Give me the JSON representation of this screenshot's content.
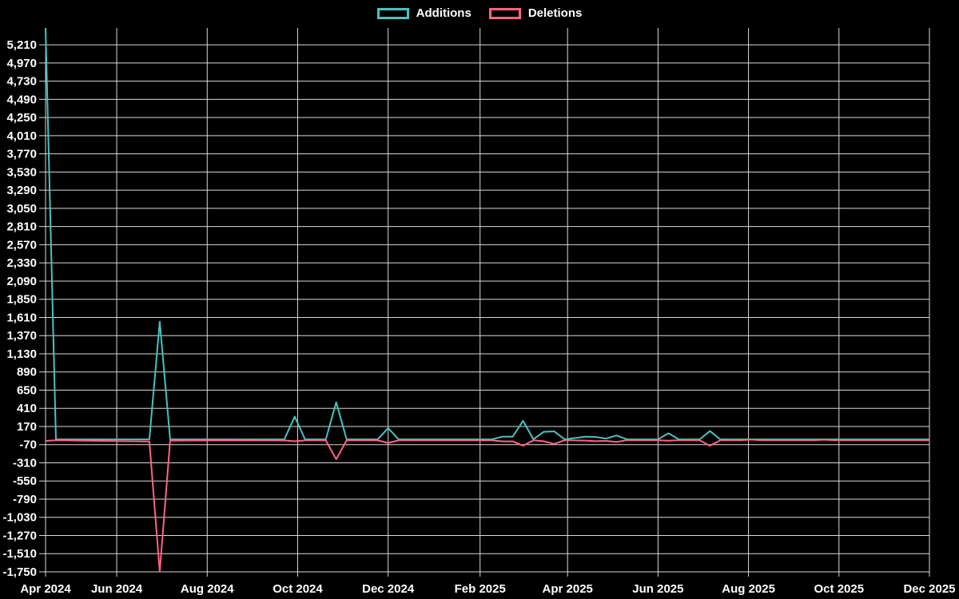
{
  "legend": {
    "items": [
      {
        "label": "Additions",
        "color": "#4bc0c0"
      },
      {
        "label": "Deletions",
        "color": "#ff6384"
      }
    ]
  },
  "chart_data": {
    "type": "line",
    "title": "",
    "xlabel": "",
    "ylabel": "",
    "grid": true,
    "legend_position": "top-center",
    "colors": {
      "background": "#000000",
      "grid": "#d9d9d9",
      "text": "#ffffff",
      "additions": "#4bc0c0",
      "deletions": "#ff6384"
    },
    "y_axis": {
      "min": -1750,
      "max": 5433,
      "tick_max": 5210,
      "tick_step": 240,
      "tick_labels": [
        "5,210",
        "4,970",
        "4,730",
        "4,490",
        "4,250",
        "4,010",
        "3,770",
        "3,530",
        "3,290",
        "3,050",
        "2,810",
        "2,570",
        "2,330",
        "2,090",
        "1,850",
        "1,610",
        "1,370",
        "1,130",
        "890",
        "650",
        "410",
        "170",
        "-70",
        "-310",
        "-550",
        "-790",
        "-1,030",
        "-1,270",
        "-1,510",
        "-1,750"
      ]
    },
    "x_axis": {
      "ticks": [
        {
          "label": "Apr 2024",
          "date": "2024-04-14"
        },
        {
          "label": "Jun 2024",
          "date": "2024-06-01"
        },
        {
          "label": "Aug 2024",
          "date": "2024-08-01"
        },
        {
          "label": "Oct 2024",
          "date": "2024-10-01"
        },
        {
          "label": "Dec 2024",
          "date": "2024-12-01"
        },
        {
          "label": "Feb 2025",
          "date": "2025-02-01"
        },
        {
          "label": "Apr 2025",
          "date": "2025-04-01"
        },
        {
          "label": "Jun 2025",
          "date": "2025-06-01"
        },
        {
          "label": "Aug 2025",
          "date": "2025-08-01"
        },
        {
          "label": "Oct 2025",
          "date": "2025-10-01"
        },
        {
          "label": "Dec 2025",
          "date": "2025-12-01"
        }
      ]
    },
    "series": [
      {
        "name": "Additions",
        "color": "#4bc0c0",
        "points": [
          [
            "2024-04-14",
            5433
          ],
          [
            "2024-04-21",
            0
          ],
          [
            "2024-06-23",
            0
          ],
          [
            "2024-06-30",
            1554
          ],
          [
            "2024-07-07",
            0
          ],
          [
            "2024-09-22",
            0
          ],
          [
            "2024-09-29",
            300
          ],
          [
            "2024-10-06",
            0
          ],
          [
            "2024-10-20",
            0
          ],
          [
            "2024-10-27",
            490
          ],
          [
            "2024-11-03",
            0
          ],
          [
            "2024-11-24",
            0
          ],
          [
            "2024-12-01",
            150
          ],
          [
            "2024-12-08",
            0
          ],
          [
            "2025-02-09",
            0
          ],
          [
            "2025-02-16",
            35
          ],
          [
            "2025-02-23",
            35
          ],
          [
            "2025-03-02",
            245
          ],
          [
            "2025-03-09",
            0
          ],
          [
            "2025-03-16",
            100
          ],
          [
            "2025-03-23",
            105
          ],
          [
            "2025-03-30",
            0
          ],
          [
            "2025-04-13",
            35
          ],
          [
            "2025-04-20",
            32
          ],
          [
            "2025-04-27",
            10
          ],
          [
            "2025-05-04",
            50
          ],
          [
            "2025-05-11",
            0
          ],
          [
            "2025-06-01",
            0
          ],
          [
            "2025-06-08",
            80
          ],
          [
            "2025-06-15",
            0
          ],
          [
            "2025-06-29",
            0
          ],
          [
            "2025-07-06",
            110
          ],
          [
            "2025-07-13",
            0
          ],
          [
            "2025-07-27",
            0
          ],
          [
            "2025-08-03",
            0
          ],
          [
            "2025-08-10",
            0
          ],
          [
            "2025-09-14",
            0
          ],
          [
            "2025-09-21",
            0
          ],
          [
            "2025-09-28",
            0
          ],
          [
            "2025-12-01",
            0
          ]
        ]
      },
      {
        "name": "Deletions",
        "color": "#ff6384",
        "points": [
          [
            "2024-04-14",
            -20
          ],
          [
            "2024-04-21",
            -13
          ],
          [
            "2024-06-23",
            -28
          ],
          [
            "2024-06-30",
            -1748
          ],
          [
            "2024-07-07",
            -16
          ],
          [
            "2024-09-22",
            -14
          ],
          [
            "2024-09-29",
            -25
          ],
          [
            "2024-10-06",
            -14
          ],
          [
            "2024-10-20",
            -14
          ],
          [
            "2024-10-27",
            -263
          ],
          [
            "2024-11-03",
            -14
          ],
          [
            "2024-11-24",
            -14
          ],
          [
            "2024-12-01",
            -48
          ],
          [
            "2024-12-08",
            -14
          ],
          [
            "2025-02-09",
            -14
          ],
          [
            "2025-02-16",
            -26
          ],
          [
            "2025-02-23",
            -26
          ],
          [
            "2025-03-02",
            -85
          ],
          [
            "2025-03-09",
            -13
          ],
          [
            "2025-03-16",
            -25
          ],
          [
            "2025-03-23",
            -60
          ],
          [
            "2025-03-30",
            -12
          ],
          [
            "2025-04-13",
            -16
          ],
          [
            "2025-04-20",
            -24
          ],
          [
            "2025-04-27",
            -20
          ],
          [
            "2025-05-04",
            -35
          ],
          [
            "2025-05-11",
            -12
          ],
          [
            "2025-06-01",
            -12
          ],
          [
            "2025-06-08",
            -18
          ],
          [
            "2025-06-15",
            -12
          ],
          [
            "2025-06-29",
            -12
          ],
          [
            "2025-07-06",
            -85
          ],
          [
            "2025-07-13",
            -12
          ],
          [
            "2025-07-27",
            -12
          ],
          [
            "2025-08-03",
            -3
          ],
          [
            "2025-08-10",
            -12
          ],
          [
            "2025-09-14",
            -12
          ],
          [
            "2025-09-21",
            -4
          ],
          [
            "2025-09-28",
            -12
          ],
          [
            "2025-12-01",
            -12
          ]
        ]
      }
    ]
  }
}
